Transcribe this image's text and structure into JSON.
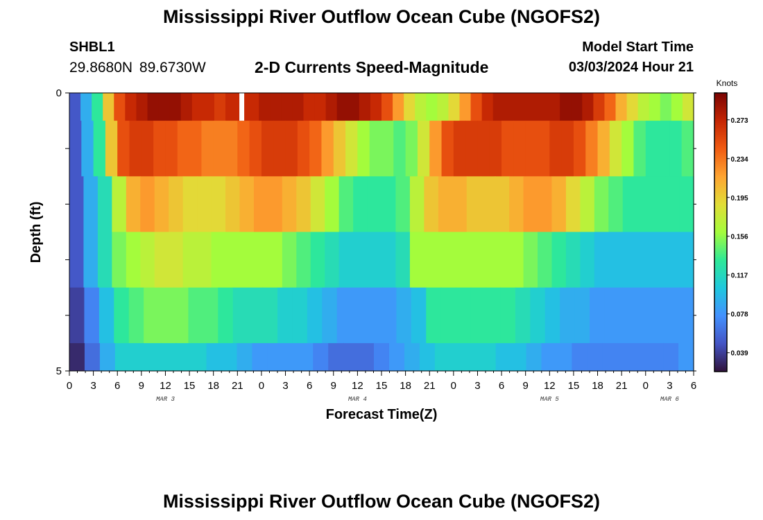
{
  "header": {
    "title": "Mississippi River Outflow Ocean Cube (NGOFS2)",
    "station": "SHBL1",
    "coordinates": "29.8680N  89.6730W",
    "subtitle": "2-D Currents Speed-Magnitude",
    "model_start_label": "Model Start Time",
    "model_start_value": "03/03/2024 Hour 21"
  },
  "footer": {
    "title": "Mississippi River Outflow Ocean Cube (NGOFS2)"
  },
  "chart_data": {
    "type": "heatmap",
    "xlabel": "Forecast Time(Z)",
    "ylabel": "Depth (ft)",
    "x_ticks": [
      "0",
      "3",
      "6",
      "9",
      "12",
      "15",
      "18",
      "21",
      "0",
      "3",
      "6",
      "9",
      "12",
      "15",
      "18",
      "21",
      "0",
      "3",
      "6",
      "9",
      "12",
      "15",
      "18",
      "21",
      "0",
      "3",
      "6"
    ],
    "x_range_hours": [
      0,
      78
    ],
    "day_labels": [
      {
        "label": "MAR 3",
        "hour": 12
      },
      {
        "label": "MAR 4",
        "hour": 36
      },
      {
        "label": "MAR 5",
        "hour": 60
      },
      {
        "label": "MAR 6",
        "hour": 75
      }
    ],
    "y_ticks": [
      "0",
      "5"
    ],
    "ylim": [
      0,
      5
    ],
    "colorbar": {
      "unit": "Knots",
      "min": 0.02,
      "max": 0.3,
      "labels": [
        "0.273",
        "0.234",
        "0.195",
        "0.156",
        "0.117",
        "0.078",
        "0.039"
      ],
      "colors": [
        "#30123b",
        "#4454c4",
        "#4391fe",
        "#1fc8de",
        "#2ee997",
        "#a4fc3c",
        "#e1dd37",
        "#fea431",
        "#f05b12",
        "#c42503",
        "#7a0403"
      ]
    },
    "missing_hours": [
      21.5
    ],
    "layers": [
      {
        "depth_range": [
          0.0,
          0.5
        ],
        "values": [
          0.05,
          0.09,
          0.13,
          0.2,
          0.25,
          0.27,
          0.28,
          0.29,
          0.29,
          0.29,
          0.28,
          0.27,
          0.27,
          0.26,
          0.27,
          0.27,
          0.27,
          0.28,
          0.28,
          0.28,
          0.28,
          0.27,
          0.27,
          0.28,
          0.29,
          0.29,
          0.28,
          0.27,
          0.25,
          0.22,
          0.19,
          0.17,
          0.16,
          0.17,
          0.19,
          0.22,
          0.25,
          0.27,
          0.28,
          0.28,
          0.28,
          0.28,
          0.28,
          0.28,
          0.29,
          0.29,
          0.28,
          0.26,
          0.24,
          0.21,
          0.19,
          0.17,
          0.16,
          0.15,
          0.16,
          0.18
        ]
      },
      {
        "depth_range": [
          0.5,
          1.5
        ],
        "values": [
          0.05,
          0.09,
          0.13,
          0.2,
          0.25,
          0.26,
          0.26,
          0.25,
          0.25,
          0.24,
          0.24,
          0.23,
          0.23,
          0.23,
          0.24,
          0.25,
          0.26,
          0.26,
          0.26,
          0.25,
          0.24,
          0.22,
          0.2,
          0.18,
          0.16,
          0.15,
          0.15,
          0.14,
          0.15,
          0.18,
          0.22,
          0.25,
          0.26,
          0.26,
          0.26,
          0.26,
          0.25,
          0.25,
          0.25,
          0.25,
          0.26,
          0.26,
          0.25,
          0.23,
          0.21,
          0.18,
          0.16,
          0.14,
          0.13,
          0.13,
          0.13,
          0.14
        ]
      },
      {
        "depth_range": [
          1.5,
          2.5
        ],
        "values": [
          0.05,
          0.09,
          0.12,
          0.17,
          0.21,
          0.22,
          0.21,
          0.2,
          0.19,
          0.19,
          0.19,
          0.2,
          0.21,
          0.22,
          0.22,
          0.21,
          0.2,
          0.18,
          0.16,
          0.14,
          0.13,
          0.13,
          0.13,
          0.14,
          0.17,
          0.2,
          0.21,
          0.21,
          0.2,
          0.2,
          0.2,
          0.21,
          0.22,
          0.22,
          0.21,
          0.19,
          0.17,
          0.15,
          0.14,
          0.13,
          0.13,
          0.13,
          0.13,
          0.13
        ]
      },
      {
        "depth_range": [
          2.5,
          3.5
        ],
        "values": [
          0.05,
          0.09,
          0.12,
          0.15,
          0.16,
          0.17,
          0.18,
          0.18,
          0.17,
          0.17,
          0.16,
          0.16,
          0.16,
          0.16,
          0.16,
          0.15,
          0.14,
          0.13,
          0.12,
          0.11,
          0.11,
          0.11,
          0.11,
          0.12,
          0.16,
          0.16,
          0.16,
          0.16,
          0.16,
          0.16,
          0.16,
          0.16,
          0.15,
          0.14,
          0.13,
          0.12,
          0.11,
          0.1,
          0.1,
          0.1,
          0.1,
          0.1,
          0.1,
          0.1
        ]
      },
      {
        "depth_range": [
          3.5,
          4.5
        ],
        "values": [
          0.04,
          0.07,
          0.1,
          0.13,
          0.14,
          0.15,
          0.15,
          0.15,
          0.14,
          0.14,
          0.13,
          0.12,
          0.12,
          0.12,
          0.11,
          0.11,
          0.1,
          0.09,
          0.08,
          0.08,
          0.08,
          0.08,
          0.09,
          0.1,
          0.13,
          0.13,
          0.13,
          0.13,
          0.13,
          0.13,
          0.12,
          0.11,
          0.1,
          0.09,
          0.09,
          0.08,
          0.08,
          0.08,
          0.08,
          0.08,
          0.08,
          0.08
        ]
      },
      {
        "depth_range": [
          4.5,
          5.0
        ],
        "values": [
          0.03,
          0.06,
          0.09,
          0.11,
          0.11,
          0.11,
          0.11,
          0.11,
          0.11,
          0.1,
          0.1,
          0.09,
          0.08,
          0.08,
          0.08,
          0.08,
          0.07,
          0.06,
          0.06,
          0.06,
          0.07,
          0.08,
          0.09,
          0.1,
          0.11,
          0.11,
          0.11,
          0.11,
          0.1,
          0.1,
          0.09,
          0.08,
          0.08,
          0.07,
          0.07,
          0.07,
          0.07,
          0.07,
          0.07,
          0.07,
          0.08
        ]
      }
    ]
  }
}
